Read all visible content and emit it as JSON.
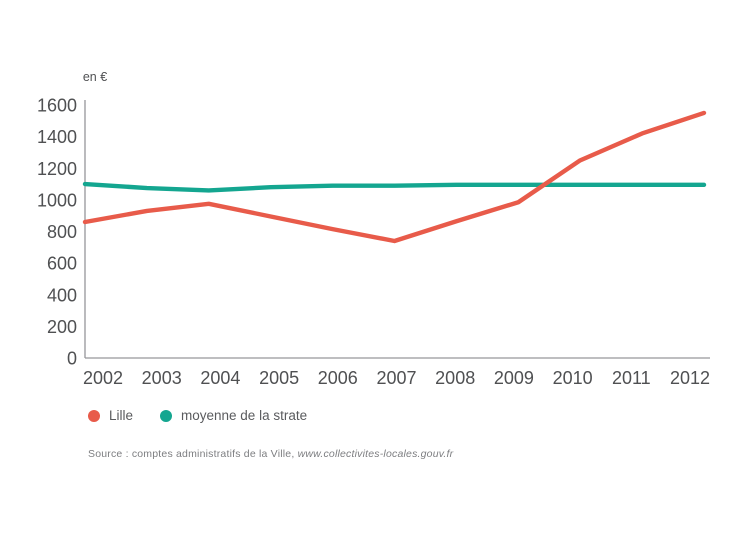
{
  "figure": {
    "ylabel": "en €",
    "source": {
      "prefix": "Source : comptes administratifs de la Ville, ",
      "link": "www.collectivites-locales.gouv.fr"
    }
  },
  "chart_data": {
    "type": "line",
    "x": [
      "2002",
      "2003",
      "2004",
      "2005",
      "2006",
      "2007",
      "2008",
      "2009",
      "2010",
      "2011",
      "2012"
    ],
    "series": [
      {
        "name": "Lille",
        "color": "#e85b4a",
        "values": [
          860,
          930,
          975,
          895,
          815,
          740,
          865,
          985,
          1250,
          1420,
          1550
        ]
      },
      {
        "name": "moyenne de la strate",
        "color": "#14a690",
        "values": [
          1100,
          1075,
          1060,
          1080,
          1090,
          1090,
          1095,
          1095,
          1095,
          1095,
          1095
        ]
      }
    ],
    "title": "",
    "xlabel": "",
    "ylabel": "en €",
    "ylim": [
      0,
      1600
    ],
    "yticks": [
      0,
      200,
      400,
      600,
      800,
      1000,
      1200,
      1400,
      1600
    ],
    "grid": false,
    "legend_position": "bottom-left",
    "axis_color": "#96969a",
    "tick_text_color": "#4f5052",
    "line_width": 4.4
  }
}
